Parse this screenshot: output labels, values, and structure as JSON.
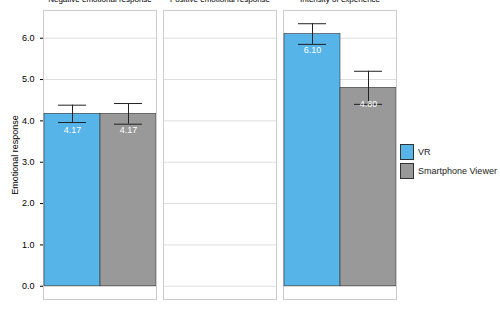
{
  "chart_data": {
    "type": "bar",
    "categories": [
      "Negative emotional response",
      "Positive emotional response",
      "Intensity of experience"
    ],
    "series": [
      {
        "name": "VR",
        "color": "#56B4E9",
        "values": [
          4.17,
          0,
          6.1
        ],
        "value_labels": [
          "4.17",
          null,
          "6.10"
        ],
        "errors": [
          0.21,
          null,
          0.25
        ]
      },
      {
        "name": "Smartphone Viewer",
        "color": "#999999",
        "values": [
          4.17,
          0,
          4.8
        ],
        "value_labels": [
          "4.17",
          null,
          "4.80"
        ],
        "errors": [
          0.25,
          null,
          0.4
        ]
      }
    ],
    "y_label": "Emotional response",
    "ylim": [
      -0.32,
      6.67
    ],
    "yticks": [
      0,
      1,
      2,
      3,
      4,
      5,
      6
    ],
    "grid": true,
    "data_labels": true,
    "legend": "right"
  }
}
